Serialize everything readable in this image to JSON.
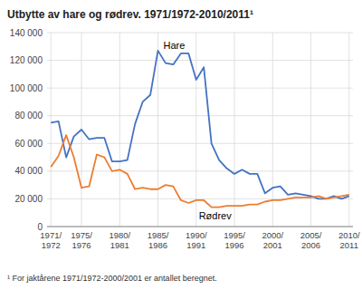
{
  "chart_data": {
    "type": "line",
    "title": "Utbytte av hare og rødrev. 1971/1972-2010/2011¹",
    "footnote": "¹ For jaktårene 1971/1972-2000/2001 er antallet beregnet.",
    "categories": [
      "1971/\n1972",
      null,
      null,
      null,
      "1975/\n1976",
      null,
      null,
      null,
      null,
      "1980/\n1981",
      null,
      null,
      null,
      null,
      "1985/\n1986",
      null,
      null,
      null,
      null,
      "1990/\n1991",
      null,
      null,
      null,
      null,
      "1995/\n1996",
      null,
      null,
      null,
      null,
      "2000/\n2001",
      null,
      null,
      null,
      null,
      "2005/\n2006",
      null,
      null,
      null,
      null,
      "2010/\n2011"
    ],
    "series": [
      {
        "name": "Hare",
        "color": "#4472C4",
        "values": [
          75000,
          76000,
          50000,
          65000,
          70000,
          63000,
          64000,
          64000,
          47000,
          47000,
          48000,
          74000,
          90000,
          95000,
          127000,
          118000,
          117000,
          125000,
          125000,
          106000,
          115000,
          60000,
          48000,
          42000,
          38000,
          41000,
          38000,
          38000,
          24000,
          28000,
          29000,
          23000,
          24000,
          23000,
          22000,
          20000,
          20000,
          22000,
          20000,
          22000
        ]
      },
      {
        "name": "Rødrev",
        "color": "#ED7D31",
        "values": [
          43000,
          51000,
          66000,
          50000,
          28000,
          29000,
          52000,
          50000,
          40000,
          41000,
          38000,
          27000,
          28000,
          27000,
          27000,
          30000,
          29000,
          19000,
          17000,
          19000,
          19000,
          14000,
          14000,
          15000,
          15000,
          15000,
          16000,
          16000,
          18000,
          19000,
          19000,
          20000,
          21000,
          21000,
          21000,
          22000,
          20000,
          21000,
          22000,
          23000
        ]
      }
    ],
    "ylim": [
      0,
      140000
    ],
    "yticks": [
      0,
      {
        "value": 20000,
        "label": "20 000"
      },
      {
        "value": 40000,
        "label": "40 000"
      },
      {
        "value": 60000,
        "label": "60 000"
      },
      {
        "value": 80000,
        "label": "80 000"
      },
      {
        "value": 100000,
        "label": "100 000"
      },
      {
        "value": 120000,
        "label": "120 000"
      },
      {
        "value": 140000,
        "label": "140 000"
      }
    ],
    "grid": true
  }
}
